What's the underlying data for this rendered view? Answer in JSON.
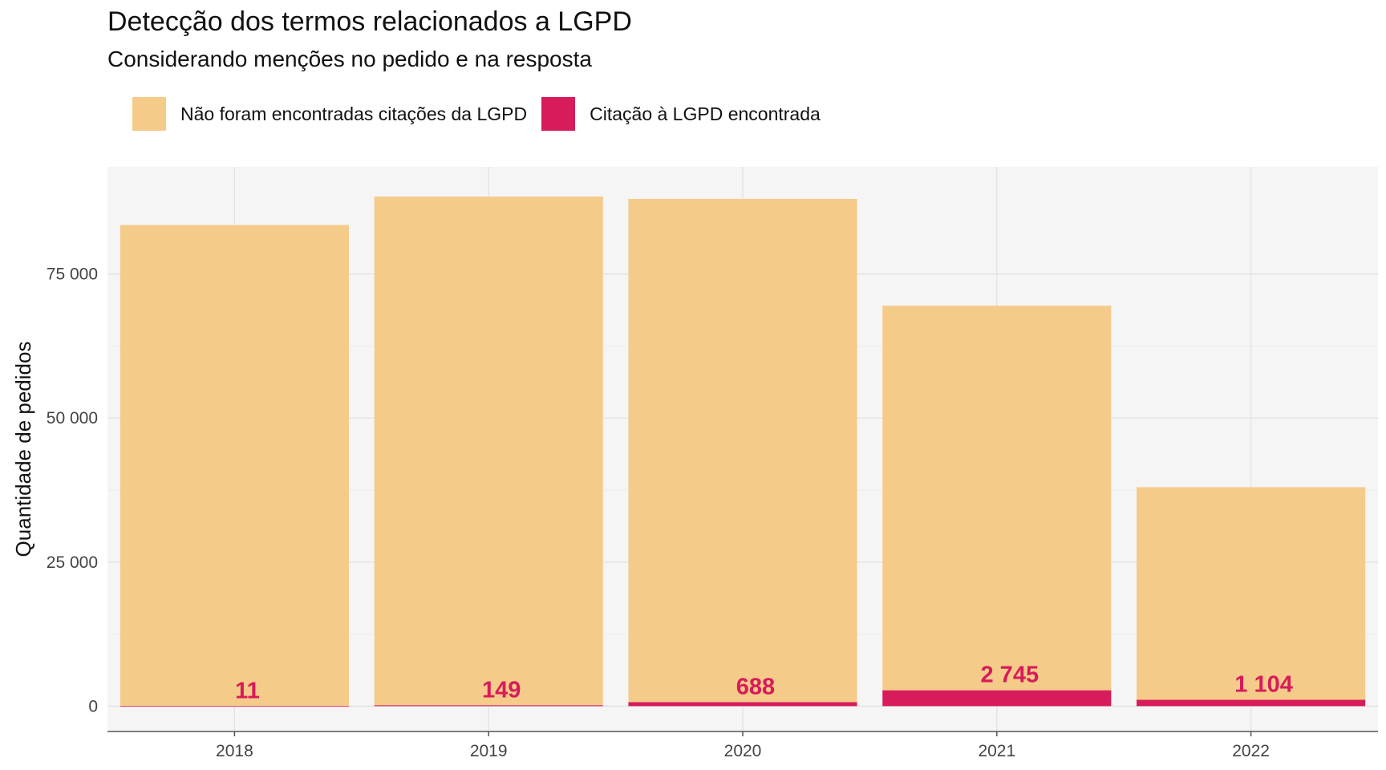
{
  "title": "Detecção dos termos relacionados a LGPD",
  "subtitle": "Considerando menções no pedido e na resposta",
  "legend": [
    {
      "label": "Não foram encontradas citações da LGPD",
      "color": "#F5CB8A"
    },
    {
      "label": "Citação à LGPD encontrada",
      "color": "#D81B5A"
    }
  ],
  "chart_data": {
    "type": "bar",
    "stacked": true,
    "title": "Detecção dos termos relacionados a LGPD",
    "subtitle": "Considerando menções no pedido e na resposta",
    "xlabel": "",
    "ylabel": "Quantidade de pedidos",
    "categories": [
      "2018",
      "2019",
      "2020",
      "2021",
      "2022"
    ],
    "series": [
      {
        "name": "Não foram encontradas citações da LGPD",
        "color": "#F5CB8A",
        "values": [
          83489,
          88291,
          87341,
          66756,
          36896
        ]
      },
      {
        "name": "Citação à LGPD encontrada",
        "color": "#D81B5A",
        "values": [
          11,
          149,
          688,
          2745,
          1104
        ]
      }
    ],
    "data_labels": [
      "11",
      "149",
      "688",
      "2 745",
      "1 104"
    ],
    "yticks": [
      0,
      25000,
      50000,
      75000
    ],
    "ytick_labels": [
      "0",
      "25 000",
      "50 000",
      "75 000"
    ],
    "ylim": [
      -4400,
      93600
    ],
    "grid": true,
    "legend_position": "top-left",
    "panel_background": "#F5F5F5"
  }
}
